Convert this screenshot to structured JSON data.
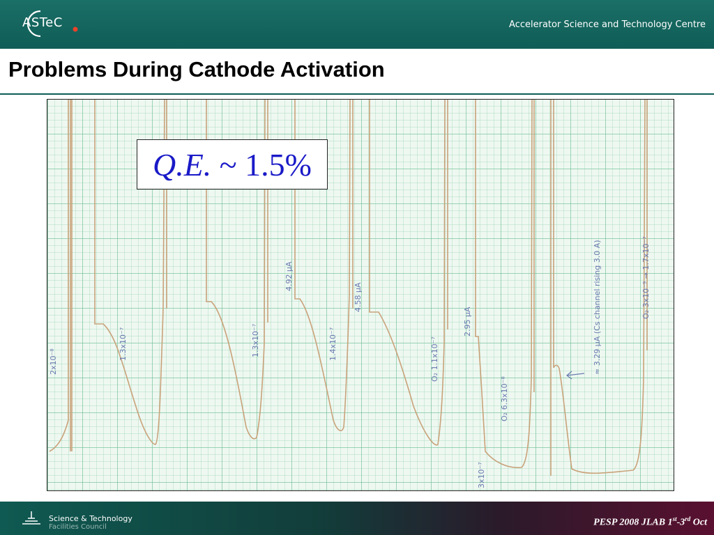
{
  "header": {
    "logo_text": "ASTeC",
    "centre_name": "Accelerator Science and Technology Centre"
  },
  "slide": {
    "title": "Problems During Cathode Activation"
  },
  "callout": {
    "qe_prefix": "Q.E.",
    "qe_value": " ~ 1.5%"
  },
  "annotations": [
    "2x10⁻⁸",
    "1.3x10⁻⁷",
    "1.3x10⁻⁷",
    "4.92 μA",
    "1.4x10⁻⁷",
    "4.58 μA",
    "O₂ 1.1x10⁻⁷",
    "2.95 μA",
    "O₂ 6.3x10⁻⁸",
    "3x10⁻⁷",
    "≈ 3.29 μA (Cs channel rising 3.0 A)",
    "O₂ 3x10⁻⁹ → 1.7x10⁻⁷"
  ],
  "footer": {
    "org_line1": "Science & Technology",
    "org_line2": "Facilities Council",
    "conference_prefix": "PESP 2008 JLAB 1",
    "conference_sup1": "st",
    "conference_mid": "-3",
    "conference_sup2": "rd",
    "conference_suffix": " Oct"
  },
  "colors": {
    "header_bg": "#0f5d56",
    "trace": "#c9a27a",
    "callout_text": "#1a1ac8"
  }
}
